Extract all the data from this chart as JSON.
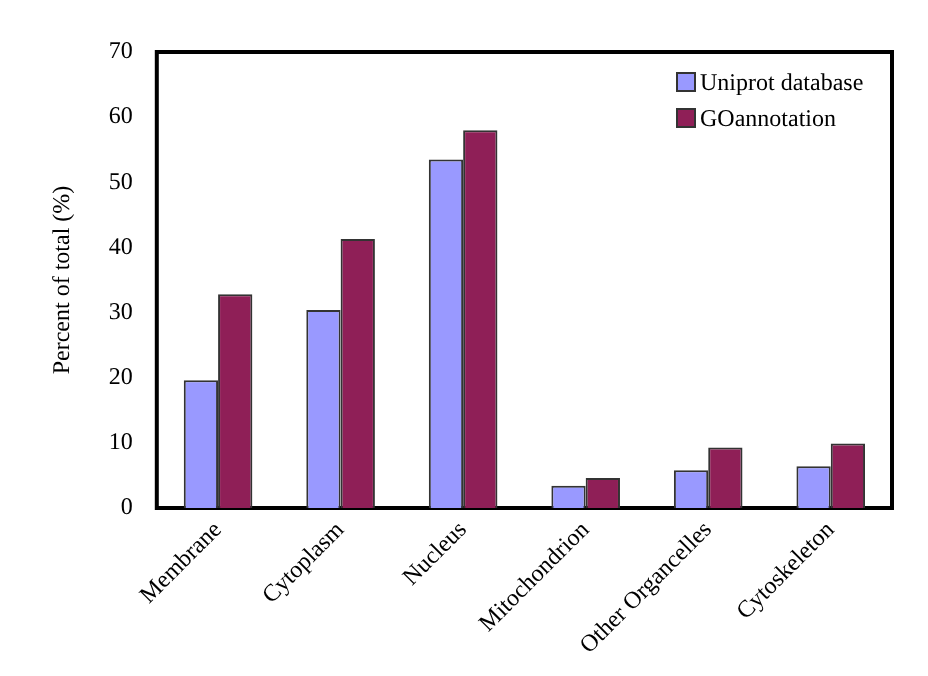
{
  "chart_data": {
    "type": "bar",
    "ylabel": "Percent of total (%)",
    "categories": [
      "Membrane",
      "Cytoplasm",
      "Nucleus",
      "Mitochondrion",
      "Other Organcelles",
      "Cytoskeleton"
    ],
    "series": [
      {
        "name": "Uniprot database",
        "color": "#9999ff",
        "values": [
          19.6,
          30.4,
          53.5,
          3.4,
          5.8,
          6.4
        ]
      },
      {
        "name": "GOannotation",
        "color": "#8f1f57",
        "values": [
          32.8,
          41.3,
          58.0,
          4.6,
          9.3,
          9.9
        ]
      }
    ],
    "ylim": [
      0,
      70
    ],
    "yticks": [
      0,
      10,
      20,
      30,
      40,
      50,
      60,
      70
    ],
    "grid": false,
    "legend": "top right"
  }
}
